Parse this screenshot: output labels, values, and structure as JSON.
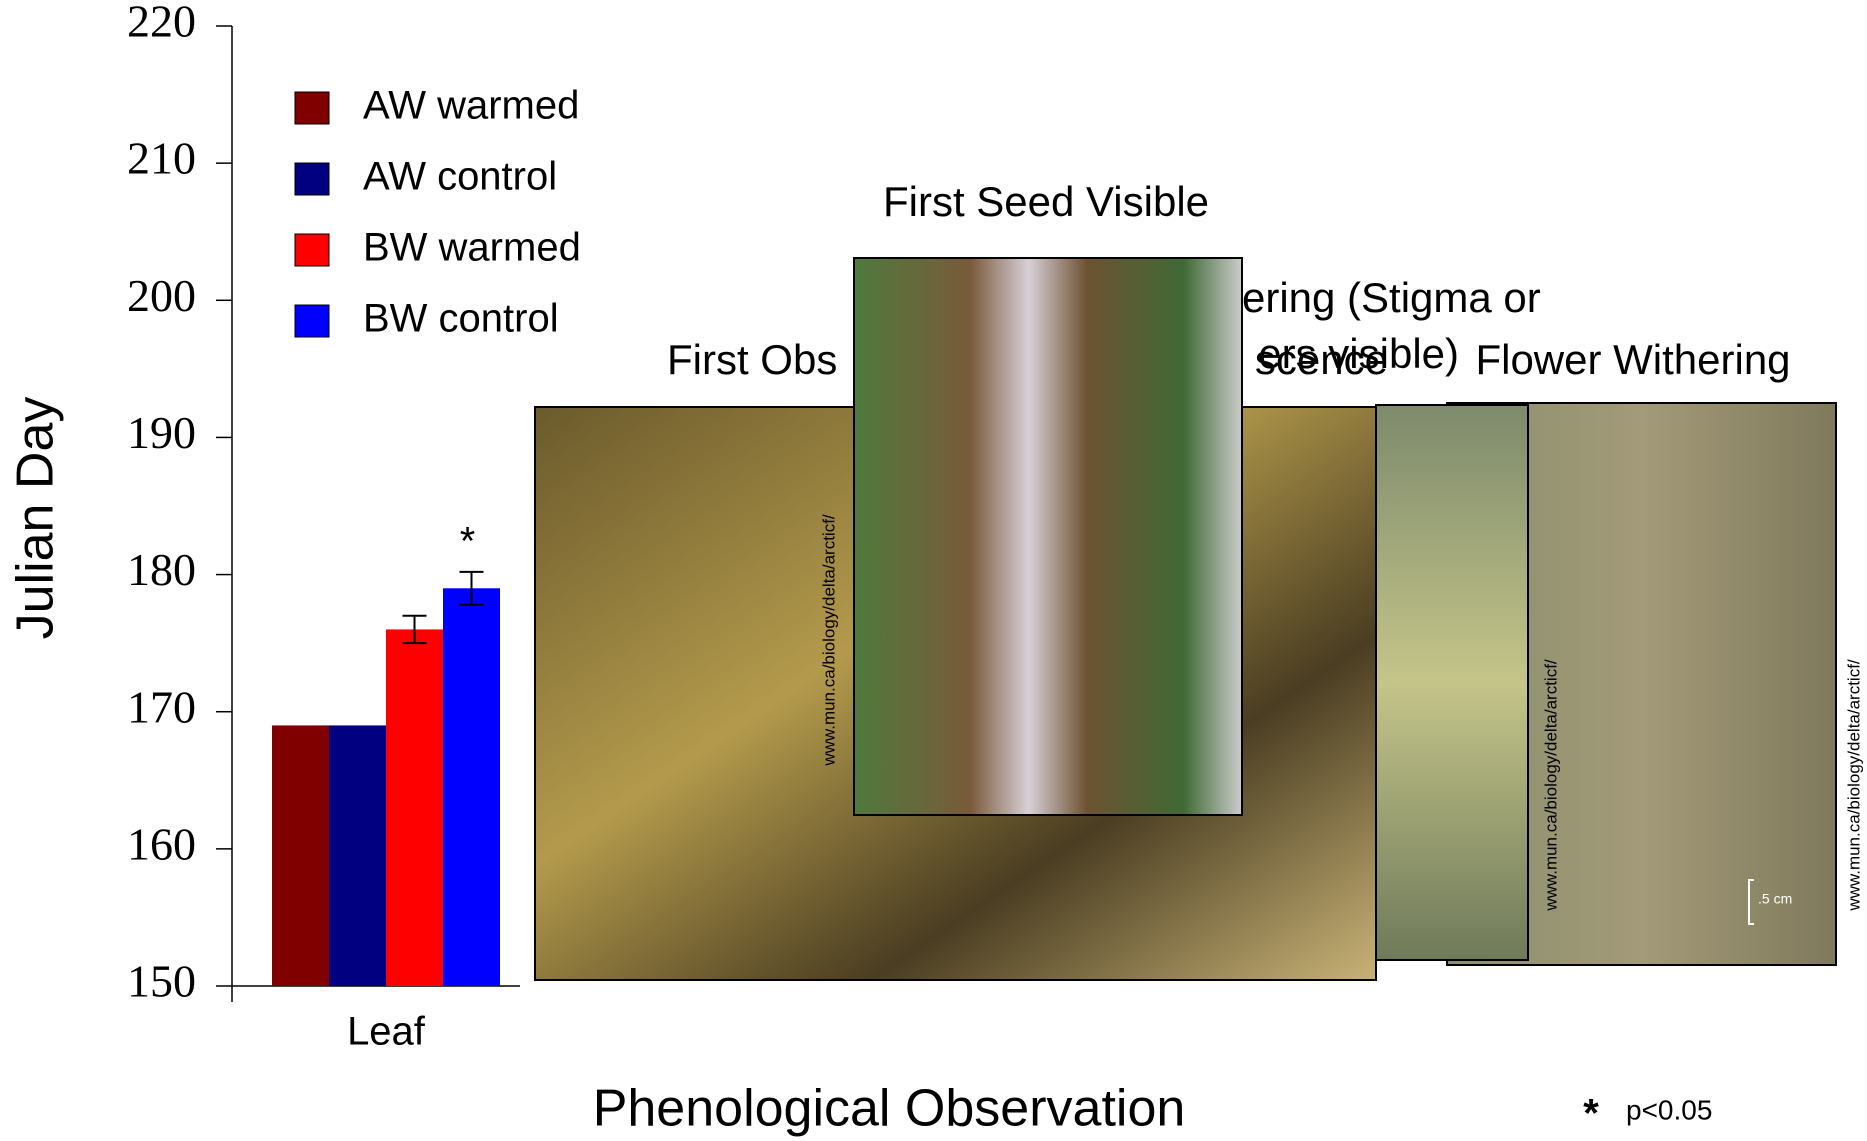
{
  "chart_data": {
    "type": "bar",
    "y_label": "Julian Day",
    "x_label": "Phenological Observation",
    "categories": [
      "Leaf"
    ],
    "series": [
      {
        "name": "AW warmed",
        "color": "#800000",
        "values": [
          169
        ]
      },
      {
        "name": "AW control",
        "color": "#000080",
        "values": [
          169
        ]
      },
      {
        "name": "BW warmed",
        "color": "#ff0000",
        "values": [
          176
        ],
        "errors": [
          1
        ]
      },
      {
        "name": "BW control",
        "color": "#0000ff",
        "values": [
          179
        ],
        "errors": [
          1.2
        ]
      }
    ],
    "ylim": [
      150,
      220
    ],
    "yticks": [
      150,
      160,
      170,
      180,
      190,
      200,
      210,
      220
    ],
    "significance": {
      "marker": "*",
      "series": 3,
      "note": "p<0.05"
    }
  },
  "photos": [
    {
      "title": "First Obs",
      "watermark": "www.mun.ca/biology/delta/arcticf/"
    },
    {
      "title": "scence"
    },
    {
      "title_lines": [
        "ering (Stigma or",
        "ers visible)"
      ],
      "watermark": "www.mun.ca/biology/delta/arcticf/"
    },
    {
      "title": "Flower Withering",
      "watermark": "www.mun.ca/biology/delta/arcticf/",
      "scale": ".5 cm"
    },
    {
      "title": "First Seed Visible"
    }
  ]
}
